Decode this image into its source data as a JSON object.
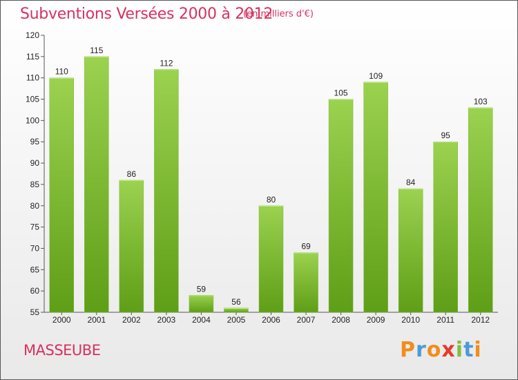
{
  "title": "Subventions Versées 2000 à 2012",
  "subtitle": "(en milliers d'€)",
  "place": "MASSEUBE",
  "logo": {
    "letters": [
      "P",
      "r",
      "o",
      "x",
      "i",
      "t",
      "i"
    ],
    "colors": [
      "#f28c1e",
      "#4a9bd8",
      "#f28c1e",
      "#e53b2c",
      "#7fbf3f",
      "#4a9bd8",
      "#f28c1e"
    ]
  },
  "colors": {
    "bar_top": "#9bd24f",
    "bar_bottom": "#5f9e17",
    "title": "#d6315e"
  },
  "chart_data": {
    "type": "bar",
    "categories": [
      "2000",
      "2001",
      "2002",
      "2003",
      "2004",
      "2005",
      "2006",
      "2007",
      "2008",
      "2009",
      "2010",
      "2011",
      "2012"
    ],
    "values": [
      110,
      115,
      86,
      112,
      59,
      56,
      80,
      69,
      105,
      109,
      84,
      95,
      103
    ],
    "ylim": [
      55,
      120
    ],
    "yticks": [
      55,
      60,
      65,
      70,
      75,
      80,
      85,
      90,
      95,
      100,
      105,
      110,
      115,
      120
    ],
    "grid": false
  }
}
